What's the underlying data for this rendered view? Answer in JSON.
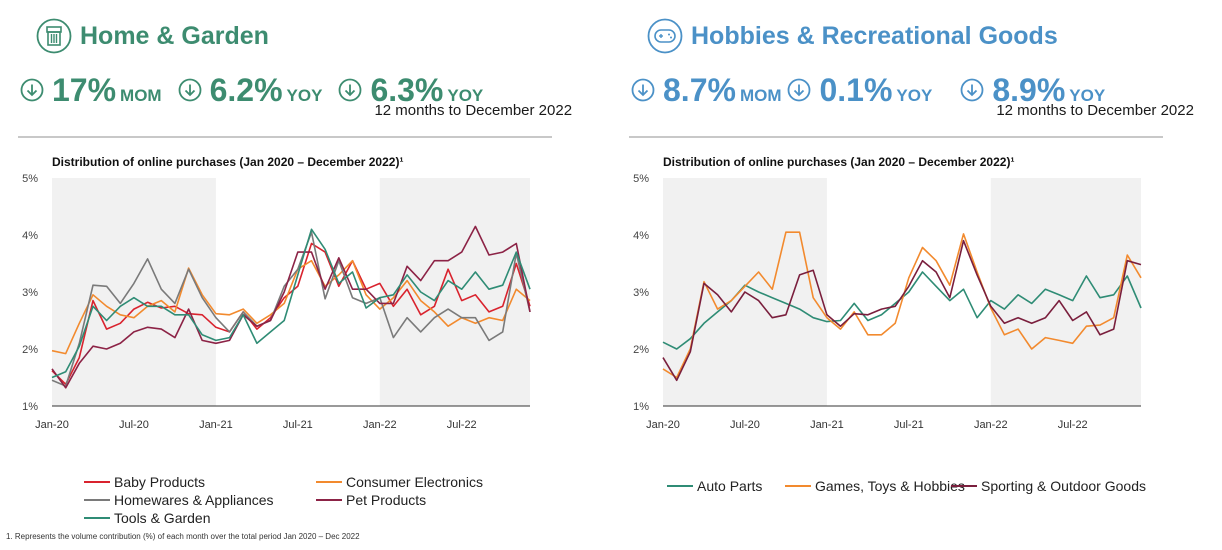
{
  "colors": {
    "green": "#3d8c70",
    "blue": "#4b91c7",
    "shade": "#f1f1f1"
  },
  "left": {
    "title": "Home & Garden",
    "icon": "house-icon",
    "kpis": [
      {
        "value": "17%",
        "unit": "MOM",
        "sub": ""
      },
      {
        "value": "6.2%",
        "unit": "YOY",
        "sub": ""
      },
      {
        "value": "6.3%",
        "unit": "YOY",
        "sub": "12 months to December 2022"
      }
    ]
  },
  "right": {
    "title": "Hobbies & Recreational Goods",
    "icon": "gamepad-icon",
    "kpis": [
      {
        "value": "8.7%",
        "unit": "MOM",
        "sub": ""
      },
      {
        "value": "0.1%",
        "unit": "YOY",
        "sub": ""
      },
      {
        "value": "8.9%",
        "unit": "YOY",
        "sub": "12 months to December 2022"
      }
    ]
  },
  "footnote": "1. Represents the volume contribution (%) of each month over the total period Jan 2020 – Dec 2022",
  "chart_data": [
    {
      "type": "line",
      "title": "Distribution of online purchases (Jan 2020 – December 2022)¹",
      "ylim": [
        1,
        5
      ],
      "yticks": [
        "1%",
        "2%",
        "3%",
        "4%",
        "5%"
      ],
      "xticks": [
        "Jan-20",
        "Jul-20",
        "Jan-21",
        "Jul-21",
        "Jan-22",
        "Jul-22"
      ],
      "xtick_index": [
        0,
        6,
        12,
        18,
        24,
        30
      ],
      "shaded_ranges": [
        [
          0,
          12
        ],
        [
          24,
          35
        ]
      ],
      "series": [
        {
          "name": "Baby Products",
          "color": "#d9232e",
          "values": [
            1.62,
            1.38,
            1.85,
            2.85,
            2.35,
            2.45,
            2.7,
            2.82,
            2.72,
            2.75,
            2.62,
            2.6,
            2.38,
            2.3,
            2.65,
            2.35,
            2.55,
            2.9,
            3.1,
            3.85,
            3.7,
            3.1,
            3.55,
            3.05,
            3.15,
            2.75,
            3.05,
            2.6,
            2.75,
            3.4,
            2.85,
            2.95,
            2.65,
            2.75,
            3.5,
            2.75
          ]
        },
        {
          "name": "Consumer Electronics",
          "color": "#f28a2e",
          "values": [
            1.97,
            1.92,
            2.45,
            2.95,
            2.75,
            2.6,
            2.55,
            2.75,
            2.85,
            2.65,
            3.42,
            2.95,
            2.62,
            2.6,
            2.7,
            2.45,
            2.6,
            2.8,
            3.4,
            3.55,
            3.1,
            3.3,
            3.55,
            2.95,
            2.7,
            2.9,
            3.2,
            2.85,
            2.65,
            2.4,
            2.55,
            2.45,
            2.55,
            2.5,
            3.05,
            2.85
          ]
        },
        {
          "name": "Homewares & Appliances",
          "color": "#7a7a7a",
          "values": [
            1.45,
            1.35,
            2.1,
            3.12,
            3.1,
            2.8,
            3.15,
            3.58,
            3.05,
            2.8,
            3.4,
            2.9,
            2.55,
            2.3,
            2.65,
            2.4,
            2.5,
            3.1,
            3.4,
            4.05,
            2.88,
            3.55,
            2.9,
            2.8,
            2.9,
            2.2,
            2.55,
            2.3,
            2.55,
            2.7,
            2.55,
            2.55,
            2.15,
            2.3,
            3.68,
            2.65
          ]
        },
        {
          "name": "Pet Products",
          "color": "#8c2346",
          "values": [
            1.65,
            1.32,
            1.75,
            2.05,
            2.0,
            2.1,
            2.3,
            2.38,
            2.35,
            2.2,
            2.7,
            2.15,
            2.1,
            2.15,
            2.6,
            2.4,
            2.5,
            3.0,
            3.7,
            3.7,
            3.05,
            3.6,
            3.05,
            3.05,
            2.8,
            2.8,
            3.45,
            3.2,
            3.55,
            3.55,
            3.7,
            4.15,
            3.65,
            3.7,
            3.85,
            2.65
          ]
        },
        {
          "name": "Tools & Garden",
          "color": "#2f8c75",
          "values": [
            1.5,
            1.6,
            2.05,
            2.75,
            2.5,
            2.75,
            2.9,
            2.75,
            2.75,
            2.6,
            2.6,
            2.25,
            2.15,
            2.2,
            2.6,
            2.1,
            2.3,
            2.5,
            3.3,
            4.1,
            3.75,
            3.15,
            3.35,
            2.72,
            2.9,
            2.95,
            3.3,
            3.0,
            2.85,
            3.2,
            3.05,
            3.35,
            3.05,
            3.12,
            3.7,
            3.05
          ]
        }
      ]
    },
    {
      "type": "line",
      "title": "Distribution of online purchases (Jan 2020 – December 2022)¹",
      "ylim": [
        1,
        5
      ],
      "yticks": [
        "1%",
        "2%",
        "3%",
        "4%",
        "5%"
      ],
      "xticks": [
        "Jan-20",
        "Jul-20",
        "Jan-21",
        "Jul-21",
        "Jan-22",
        "Jul-22"
      ],
      "xtick_index": [
        0,
        6,
        12,
        18,
        24,
        30
      ],
      "shaded_ranges": [
        [
          0,
          12
        ],
        [
          24,
          35
        ]
      ],
      "series": [
        {
          "name": "Auto Parts",
          "color": "#2f8c75",
          "values": [
            2.12,
            2.0,
            2.18,
            2.45,
            2.65,
            2.85,
            3.12,
            3.0,
            2.9,
            2.8,
            2.7,
            2.55,
            2.48,
            2.5,
            2.8,
            2.5,
            2.6,
            2.8,
            3.0,
            3.35,
            3.1,
            2.85,
            3.05,
            2.55,
            2.85,
            2.7,
            2.95,
            2.8,
            3.05,
            2.95,
            2.85,
            3.28,
            2.9,
            2.95,
            3.28,
            2.72
          ]
        },
        {
          "name": "Games, Toys & Hobbies",
          "color": "#f28a2e",
          "values": [
            1.65,
            1.5,
            2.0,
            3.18,
            2.7,
            2.85,
            3.1,
            3.35,
            3.05,
            4.05,
            4.05,
            2.9,
            2.55,
            2.35,
            2.65,
            2.25,
            2.25,
            2.45,
            3.25,
            3.78,
            3.55,
            3.12,
            4.02,
            3.35,
            2.72,
            2.25,
            2.35,
            2.0,
            2.2,
            2.15,
            2.1,
            2.4,
            2.42,
            2.55,
            3.65,
            3.25
          ]
        },
        {
          "name": "Sporting & Outdoor Goods",
          "color": "#7a1f3d",
          "values": [
            1.85,
            1.45,
            1.95,
            3.15,
            2.95,
            2.65,
            3.0,
            2.85,
            2.55,
            2.6,
            3.3,
            3.38,
            2.6,
            2.4,
            2.62,
            2.6,
            2.7,
            2.75,
            3.1,
            3.55,
            3.35,
            2.9,
            3.9,
            3.3,
            2.75,
            2.45,
            2.55,
            2.45,
            2.55,
            2.85,
            2.5,
            2.65,
            2.25,
            2.35,
            3.55,
            3.48
          ]
        }
      ]
    }
  ],
  "legends": [
    {
      "items": [
        "Baby Products",
        "Consumer Electronics",
        "Homewares & Appliances",
        "Pet Products",
        "Tools & Garden"
      ]
    },
    {
      "items": [
        "Auto Parts",
        "Games, Toys & Hobbies",
        "Sporting & Outdoor Goods"
      ]
    }
  ]
}
